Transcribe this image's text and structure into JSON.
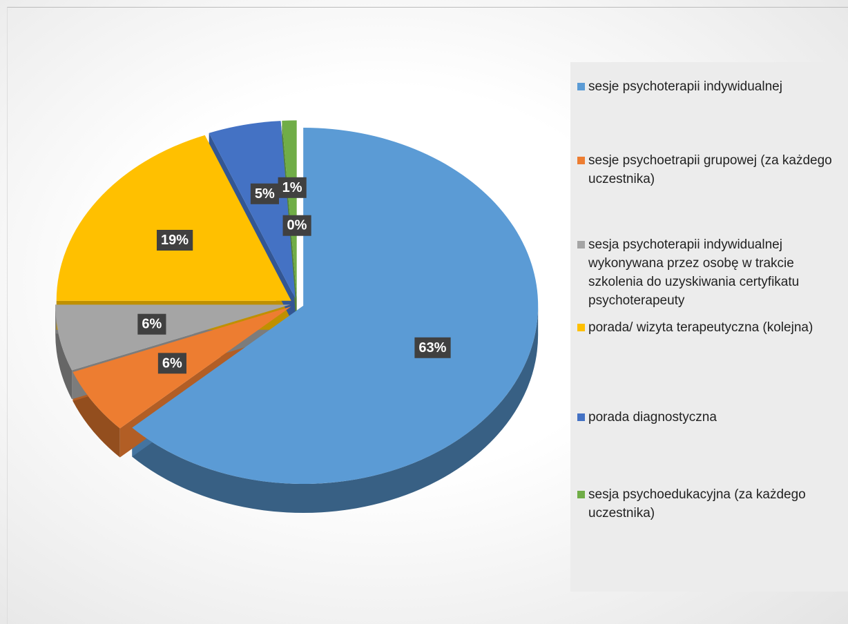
{
  "chart_data": {
    "type": "pie",
    "categories": [
      "sesje psychoterapii indywidualnej",
      "sesje psychoetrapii grupowej (za każdego uczestnika)",
      "sesja psychoterapii indywidualnej wykonywana przez osobę w trakcie szkolenia do uzyskiwania certyfikatu psychoterapeuty",
      "porada/ wizyta terapeutyczna (kolejna)",
      "porada diagnostyczna",
      "sesja psychoedukacyjna (za każdego uczestnika)",
      null
    ],
    "values": [
      63,
      6,
      6,
      19,
      5,
      1,
      0
    ],
    "value_labels": [
      "63%",
      "6%",
      "6%",
      "19%",
      "5%",
      "1%",
      "0%"
    ],
    "colors": [
      "#5b9bd5",
      "#ed7d31",
      "#a5a5a5",
      "#ffc000",
      "#4472c4",
      "#70ad47",
      null
    ],
    "legend": "right"
  }
}
